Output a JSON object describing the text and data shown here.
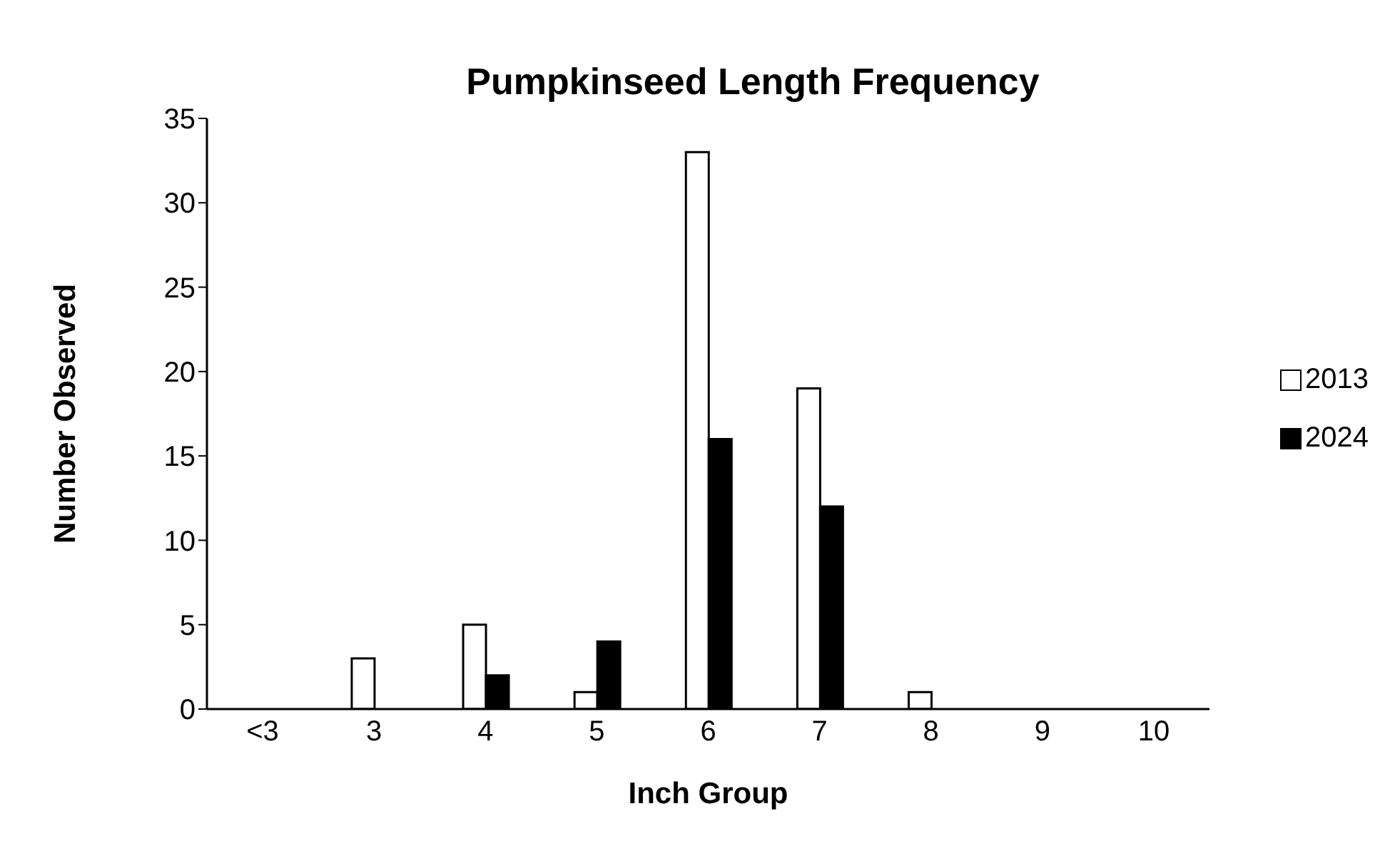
{
  "chart_data": {
    "type": "bar",
    "title": "Pumpkinseed Length Frequency",
    "xlabel": "Inch Group",
    "ylabel": "Number Observed",
    "categories": [
      "<3",
      "3",
      "4",
      "5",
      "6",
      "7",
      "8",
      "9",
      "10"
    ],
    "series": [
      {
        "name": "2013",
        "color": "#ffffff",
        "values": [
          0,
          3,
          5,
          1,
          33,
          19,
          1,
          0,
          0
        ]
      },
      {
        "name": "2024",
        "color": "#000000",
        "values": [
          0,
          0,
          2,
          4,
          16,
          12,
          0,
          0,
          0
        ]
      }
    ],
    "ylim": [
      0,
      35
    ],
    "yticks": [
      0,
      5,
      10,
      15,
      20,
      25,
      30,
      35
    ],
    "grid": false,
    "legend": "right"
  }
}
